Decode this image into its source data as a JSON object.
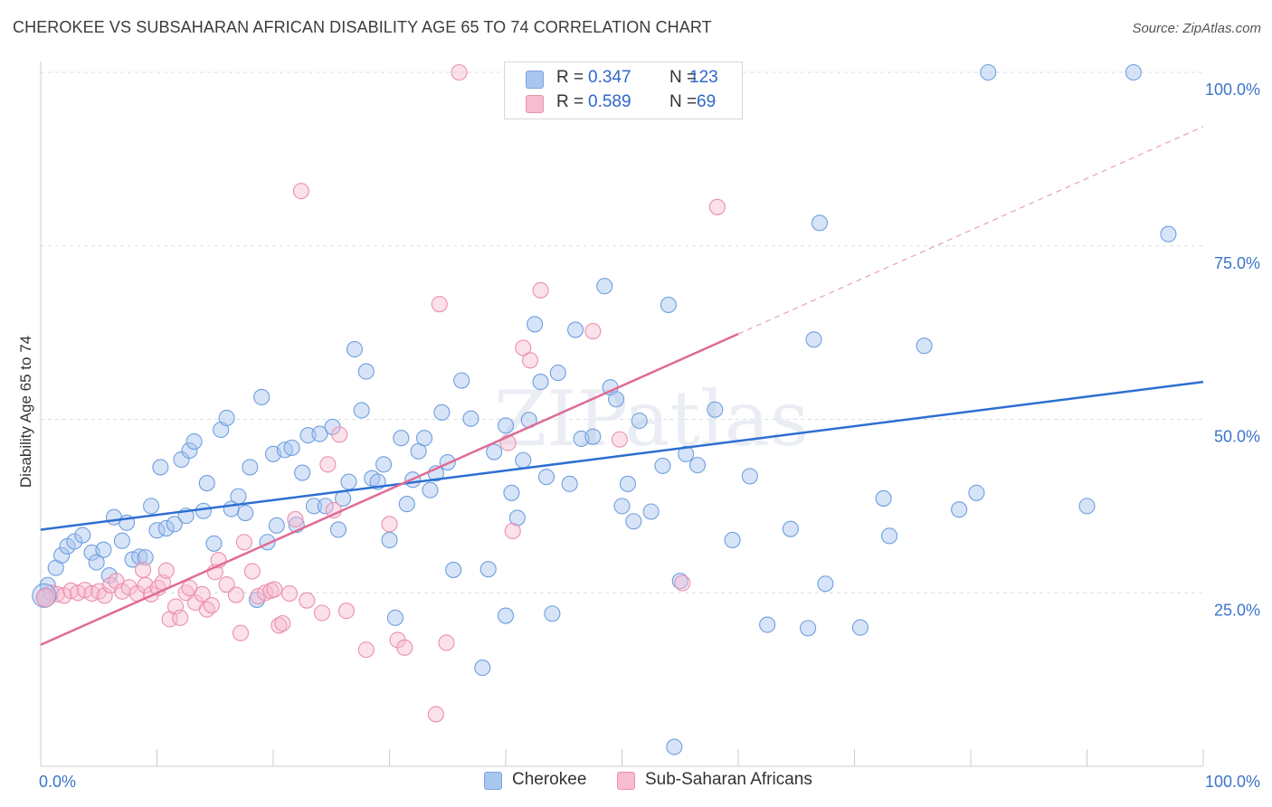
{
  "title": "CHEROKEE VS SUBSAHARAN AFRICAN DISABILITY AGE 65 TO 74 CORRELATION CHART",
  "source": "Source: ZipAtlas.com",
  "watermark": "ZIPatlas",
  "legend": {
    "rows": [
      {
        "r_label": "R =",
        "r_value": "0.347",
        "n_label": "N =",
        "n_value": "123",
        "color": "#a9c6ee",
        "stroke": "#7aa3df"
      },
      {
        "r_label": "R =",
        "r_value": "0.589",
        "n_label": "N =",
        "n_value": "69",
        "color": "#f7bcd0",
        "stroke": "#ec8fae"
      }
    ]
  },
  "bottom_legend": [
    {
      "label": "Cherokee",
      "color": "#a9c6ee",
      "stroke": "#7aa3df"
    },
    {
      "label": "Sub-Saharan Africans",
      "color": "#f7bcd0",
      "stroke": "#ec8fae"
    }
  ],
  "chart_data": {
    "type": "scatter",
    "title": "CHEROKEE VS SUBSAHARAN AFRICAN DISABILITY AGE 65 TO 74 CORRELATION CHART",
    "xlabel": "",
    "ylabel": "Disability Age 65 to 74",
    "xlim": [
      0,
      100
    ],
    "ylim": [
      0,
      100
    ],
    "x_tick_labels": [
      "0.0%",
      "100.0%"
    ],
    "y_tick_labels": [
      {
        "value": 25,
        "label": "25.0%"
      },
      {
        "value": 50,
        "label": "50.0%"
      },
      {
        "value": 75,
        "label": "75.0%"
      },
      {
        "value": 100,
        "label": "100.0%"
      }
    ],
    "grid": true,
    "series": [
      {
        "name": "Cherokee",
        "color": "#6f9fe0",
        "fill": "rgba(166,196,238,0.45)",
        "trend": {
          "x": [
            0,
            100
          ],
          "y": [
            34.1,
            55.4
          ],
          "color": "#2d6fd2",
          "style": "solid"
        },
        "points": [
          [
            0.4,
            24.6
          ],
          [
            0.6,
            26.1
          ],
          [
            1.3,
            28.6
          ],
          [
            1.8,
            30.4
          ],
          [
            2.3,
            31.7
          ],
          [
            2.9,
            32.4
          ],
          [
            3.6,
            33.3
          ],
          [
            4.4,
            30.8
          ],
          [
            4.8,
            29.4
          ],
          [
            5.4,
            31.2
          ],
          [
            5.9,
            27.5
          ],
          [
            6.3,
            35.9
          ],
          [
            7.0,
            32.5
          ],
          [
            7.4,
            35.1
          ],
          [
            7.9,
            29.8
          ],
          [
            8.5,
            30.2
          ],
          [
            9.0,
            30.1
          ],
          [
            9.5,
            37.5
          ],
          [
            10.0,
            34.0
          ],
          [
            10.3,
            43.1
          ],
          [
            10.8,
            34.3
          ],
          [
            11.5,
            34.9
          ],
          [
            12.1,
            44.2
          ],
          [
            12.5,
            36.1
          ],
          [
            12.8,
            45.5
          ],
          [
            13.2,
            46.8
          ],
          [
            14.0,
            36.8
          ],
          [
            14.3,
            40.8
          ],
          [
            14.9,
            32.1
          ],
          [
            15.5,
            48.5
          ],
          [
            16.0,
            50.2
          ],
          [
            16.4,
            37.1
          ],
          [
            17.0,
            38.9
          ],
          [
            17.6,
            36.5
          ],
          [
            18.0,
            43.1
          ],
          [
            18.6,
            24.0
          ],
          [
            19.0,
            53.2
          ],
          [
            19.5,
            32.3
          ],
          [
            20.0,
            45.0
          ],
          [
            20.3,
            34.7
          ],
          [
            21.0,
            45.6
          ],
          [
            21.6,
            45.9
          ],
          [
            22.0,
            34.8
          ],
          [
            22.5,
            42.3
          ],
          [
            23.0,
            47.7
          ],
          [
            23.5,
            37.5
          ],
          [
            24.0,
            47.9
          ],
          [
            24.5,
            37.5
          ],
          [
            25.1,
            48.9
          ],
          [
            25.6,
            34.1
          ],
          [
            26.0,
            38.6
          ],
          [
            26.5,
            41.0
          ],
          [
            27.0,
            60.1
          ],
          [
            27.6,
            51.3
          ],
          [
            28.0,
            56.9
          ],
          [
            28.5,
            41.5
          ],
          [
            29.0,
            41.0
          ],
          [
            29.5,
            43.5
          ],
          [
            30.0,
            32.6
          ],
          [
            30.5,
            21.4
          ],
          [
            31.0,
            47.3
          ],
          [
            31.5,
            37.8
          ],
          [
            32.0,
            41.3
          ],
          [
            32.5,
            45.4
          ],
          [
            33.0,
            47.3
          ],
          [
            33.5,
            39.8
          ],
          [
            34.0,
            42.2
          ],
          [
            34.5,
            51.0
          ],
          [
            35.0,
            43.8
          ],
          [
            35.5,
            28.3
          ],
          [
            36.2,
            55.6
          ],
          [
            37.0,
            50.1
          ],
          [
            38.0,
            14.2
          ],
          [
            38.5,
            28.4
          ],
          [
            39.0,
            45.3
          ],
          [
            40.0,
            49.1
          ],
          [
            40.5,
            39.4
          ],
          [
            41.0,
            35.8
          ],
          [
            41.5,
            44.1
          ],
          [
            42.0,
            49.9
          ],
          [
            42.5,
            63.7
          ],
          [
            43.0,
            55.4
          ],
          [
            43.5,
            41.7
          ],
          [
            44.5,
            56.7
          ],
          [
            45.5,
            40.7
          ],
          [
            46.0,
            62.9
          ],
          [
            46.5,
            47.2
          ],
          [
            47.5,
            47.5
          ],
          [
            48.5,
            69.2
          ],
          [
            49.0,
            54.6
          ],
          [
            49.5,
            52.9
          ],
          [
            50.0,
            37.5
          ],
          [
            50.5,
            40.7
          ],
          [
            51.0,
            35.3
          ],
          [
            51.5,
            49.8
          ],
          [
            52.5,
            36.7
          ],
          [
            53.5,
            43.3
          ],
          [
            54.0,
            66.5
          ],
          [
            55.0,
            26.7
          ],
          [
            55.5,
            45.0
          ],
          [
            56.5,
            43.4
          ],
          [
            58.0,
            51.4
          ],
          [
            59.5,
            32.6
          ],
          [
            61.0,
            41.8
          ],
          [
            62.5,
            20.4
          ],
          [
            64.5,
            34.2
          ],
          [
            66.0,
            19.9
          ],
          [
            66.5,
            61.5
          ],
          [
            67.5,
            26.3
          ],
          [
            70.5,
            20.0
          ],
          [
            72.5,
            38.6
          ],
          [
            73.0,
            33.2
          ],
          [
            76.0,
            60.6
          ],
          [
            79.0,
            37.0
          ],
          [
            80.5,
            39.4
          ],
          [
            81.5,
            100.0
          ],
          [
            90.0,
            37.5
          ],
          [
            97.0,
            76.7
          ],
          [
            94.0,
            100.0
          ],
          [
            54.5,
            2.8
          ],
          [
            67.0,
            78.3
          ],
          [
            40.0,
            21.7
          ],
          [
            44.0,
            22.0
          ]
        ]
      },
      {
        "name": "Sub-Saharan Africans",
        "color": "#ec8fae",
        "fill": "rgba(247,188,208,0.45)",
        "trend": {
          "x": [
            0,
            60
          ],
          "y": [
            17.5,
            62.3
          ],
          "extend_to_x": 100,
          "extend_to_y": 92.2,
          "color": "#e06b94",
          "style": "solid"
        },
        "points": [
          [
            0.3,
            24.3
          ],
          [
            0.9,
            25.0
          ],
          [
            1.4,
            24.8
          ],
          [
            2.0,
            24.6
          ],
          [
            2.6,
            25.3
          ],
          [
            3.2,
            25.0
          ],
          [
            3.8,
            25.4
          ],
          [
            4.4,
            24.9
          ],
          [
            5.0,
            25.2
          ],
          [
            5.5,
            24.6
          ],
          [
            6.0,
            26.1
          ],
          [
            6.5,
            26.7
          ],
          [
            7.0,
            25.2
          ],
          [
            7.6,
            25.8
          ],
          [
            8.3,
            24.9
          ],
          [
            8.8,
            28.3
          ],
          [
            9.0,
            26.1
          ],
          [
            9.5,
            24.8
          ],
          [
            10.1,
            25.7
          ],
          [
            10.5,
            26.5
          ],
          [
            10.8,
            28.2
          ],
          [
            11.1,
            21.2
          ],
          [
            11.6,
            23.0
          ],
          [
            12.0,
            21.4
          ],
          [
            12.5,
            25.0
          ],
          [
            12.8,
            25.7
          ],
          [
            13.3,
            23.6
          ],
          [
            13.9,
            24.8
          ],
          [
            14.3,
            22.6
          ],
          [
            14.7,
            23.2
          ],
          [
            15.0,
            28.0
          ],
          [
            15.3,
            29.7
          ],
          [
            16.0,
            26.2
          ],
          [
            16.8,
            24.7
          ],
          [
            17.2,
            19.2
          ],
          [
            17.5,
            32.3
          ],
          [
            18.2,
            28.1
          ],
          [
            18.7,
            24.5
          ],
          [
            19.3,
            25.0
          ],
          [
            19.8,
            25.3
          ],
          [
            20.1,
            25.5
          ],
          [
            20.5,
            20.3
          ],
          [
            20.8,
            20.6
          ],
          [
            21.4,
            24.9
          ],
          [
            21.9,
            35.6
          ],
          [
            22.4,
            82.9
          ],
          [
            22.9,
            23.9
          ],
          [
            24.2,
            22.1
          ],
          [
            24.7,
            43.5
          ],
          [
            25.2,
            36.9
          ],
          [
            25.7,
            47.8
          ],
          [
            26.3,
            22.4
          ],
          [
            28.0,
            16.8
          ],
          [
            30.0,
            34.9
          ],
          [
            30.7,
            18.2
          ],
          [
            31.3,
            17.1
          ],
          [
            34.3,
            66.6
          ],
          [
            34.9,
            17.8
          ],
          [
            36.0,
            100.0
          ],
          [
            40.2,
            46.6
          ],
          [
            40.6,
            33.9
          ],
          [
            41.5,
            60.3
          ],
          [
            42.1,
            58.5
          ],
          [
            43.0,
            68.6
          ],
          [
            47.5,
            62.7
          ],
          [
            49.8,
            47.1
          ],
          [
            55.2,
            26.4
          ],
          [
            58.2,
            80.6
          ],
          [
            34.0,
            7.5
          ]
        ]
      }
    ]
  }
}
